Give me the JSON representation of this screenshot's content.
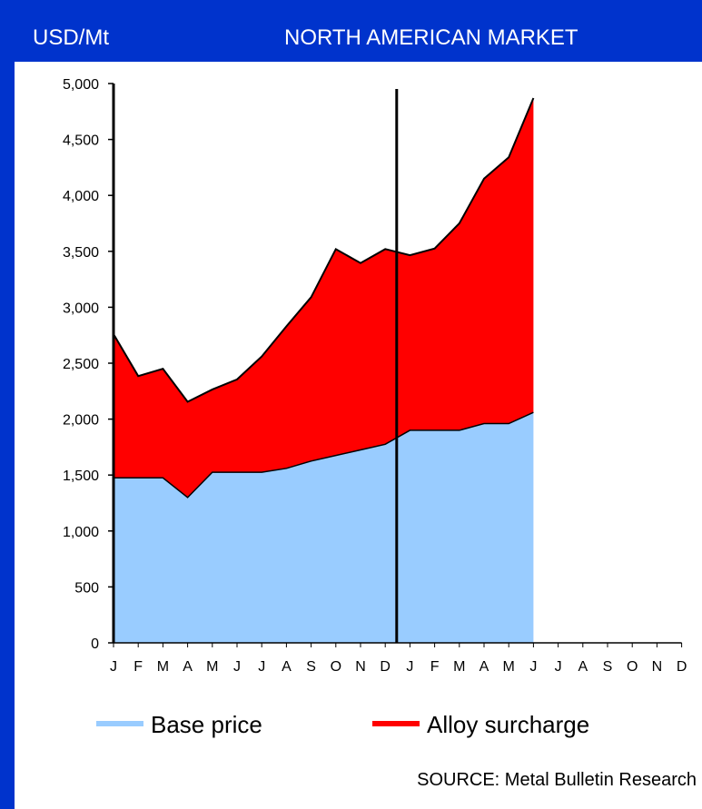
{
  "header": {
    "unit_label": "USD/Mt",
    "title": "NORTH AMERICAN MARKET"
  },
  "source": "SOURCE: Metal Bulletin Research",
  "colors": {
    "header_bg": "#0033cc",
    "base_price": "#99ccff",
    "alloy_surcharge": "#ff0000"
  },
  "chart_data": {
    "type": "area",
    "stacked": true,
    "title": "NORTH AMERICAN MARKET",
    "ylabel": "USD/Mt",
    "xlabel": "",
    "ylim": [
      0,
      5000
    ],
    "yticks": [
      0,
      500,
      1000,
      1500,
      2000,
      2500,
      3000,
      3500,
      4000,
      4500,
      5000
    ],
    "ytick_labels": [
      "0",
      "500",
      "1,000",
      "1,500",
      "2,000",
      "2,500",
      "3,000",
      "3,500",
      "4,000",
      "4,500",
      "5,000"
    ],
    "categories": [
      "J",
      "F",
      "M",
      "A",
      "M",
      "J",
      "J",
      "A",
      "S",
      "O",
      "N",
      "D",
      "J",
      "F",
      "M",
      "A",
      "M",
      "J",
      "J",
      "A",
      "S",
      "O",
      "N",
      "D"
    ],
    "year_divider_after_index": 11,
    "series": [
      {
        "name": "Base price",
        "color": "#99ccff",
        "values": [
          1475,
          1475,
          1475,
          1300,
          1525,
          1525,
          1525,
          1560,
          1625,
          1675,
          1725,
          1775,
          1900,
          1900,
          1900,
          1960,
          1960,
          2060,
          null,
          null,
          null,
          null,
          null,
          null
        ]
      },
      {
        "name": "Alloy surcharge",
        "color": "#ff0000",
        "values": [
          1285,
          910,
          975,
          855,
          740,
          830,
          1035,
          1270,
          1465,
          1845,
          1670,
          1745,
          1565,
          1625,
          1850,
          2190,
          2380,
          2810,
          null,
          null,
          null,
          null,
          null,
          null
        ]
      }
    ],
    "legend_position": "bottom",
    "grid": false
  }
}
